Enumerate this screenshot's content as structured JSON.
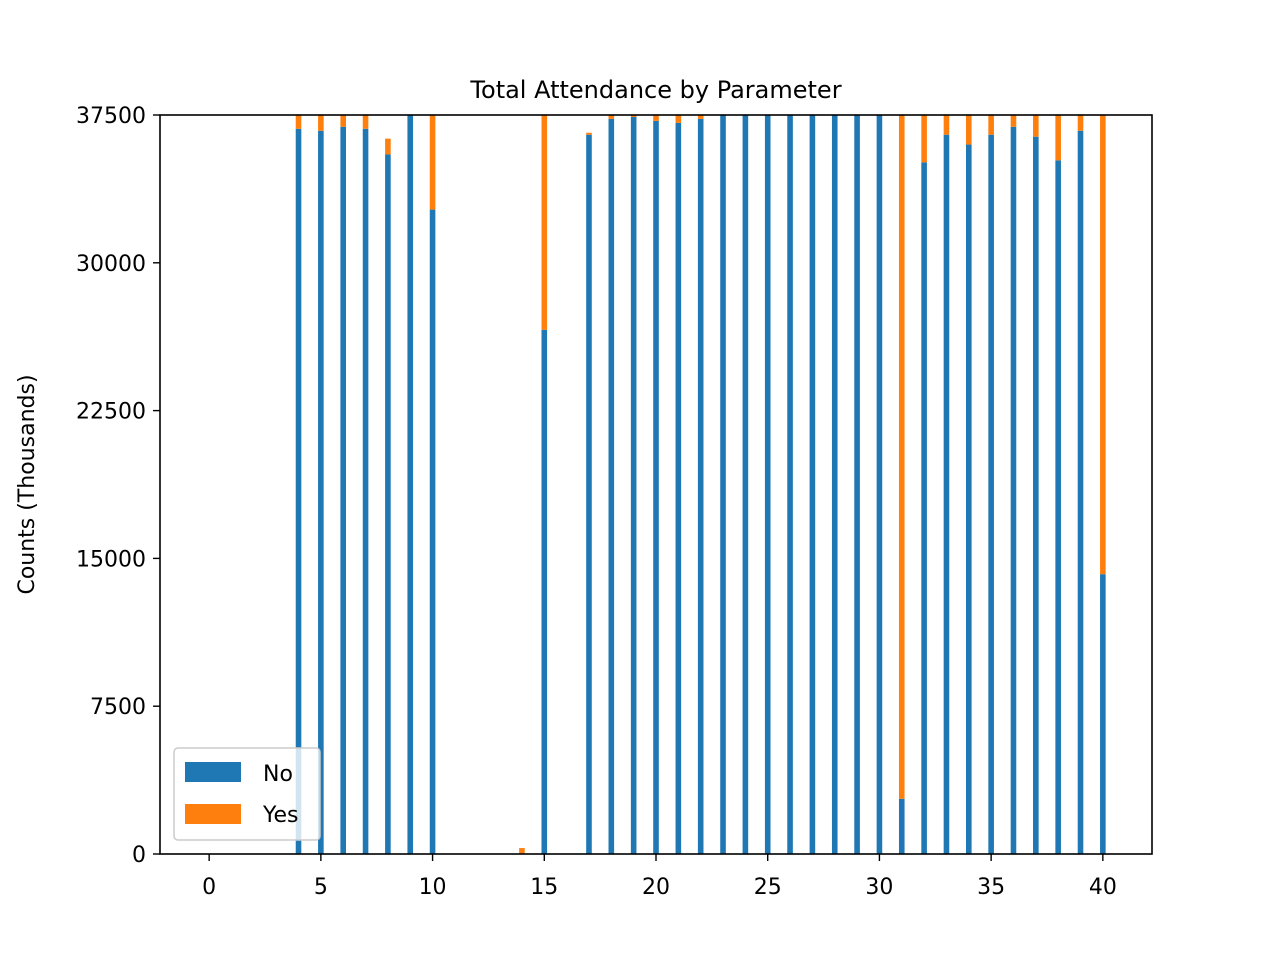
{
  "chart_data": {
    "type": "bar",
    "stacked": true,
    "title": "Total Attendance by Parameter",
    "xlabel": "",
    "ylabel": "Counts (Thousands)",
    "x": [
      4,
      5,
      6,
      7,
      8,
      9,
      10,
      14,
      15,
      17,
      18,
      19,
      20,
      21,
      22,
      23,
      24,
      25,
      26,
      27,
      28,
      29,
      30,
      31,
      32,
      33,
      34,
      35,
      36,
      37,
      38,
      39,
      40
    ],
    "series": [
      {
        "name": "No",
        "color": "#1f77b4",
        "values": [
          36800,
          36700,
          36900,
          36800,
          35500,
          37500,
          32700,
          0,
          26600,
          36500,
          37300,
          37400,
          37200,
          37100,
          37300,
          37500,
          37500,
          37500,
          37500,
          37500,
          37500,
          37500,
          37500,
          2800,
          35100,
          36500,
          36000,
          36500,
          36900,
          36400,
          35200,
          36700,
          14200
        ]
      },
      {
        "name": "Yes",
        "color": "#ff7f0e",
        "values": [
          700,
          800,
          600,
          700,
          800,
          0,
          4800,
          300,
          10900,
          100,
          200,
          100,
          300,
          400,
          200,
          0,
          0,
          0,
          0,
          0,
          0,
          0,
          0,
          34700,
          2400,
          1000,
          1500,
          1000,
          600,
          1100,
          2300,
          800,
          23300
        ]
      }
    ],
    "xlim": [
      -2.2,
      42.2
    ],
    "ylim": [
      0,
      37500
    ],
    "xticks": [
      0,
      5,
      10,
      15,
      20,
      25,
      30,
      35,
      40
    ],
    "yticks": [
      0,
      7500,
      15000,
      22500,
      30000,
      37500
    ],
    "xtick_labels": [
      "0",
      "5",
      "10",
      "15",
      "20",
      "25",
      "30",
      "35",
      "40"
    ],
    "ytick_labels": [
      "0",
      "7500",
      "15000",
      "22500",
      "30000",
      "37500"
    ],
    "bar_width": 0.25,
    "legend": {
      "position": "lower-left",
      "entries": [
        "No",
        "Yes"
      ]
    },
    "grid": false
  }
}
